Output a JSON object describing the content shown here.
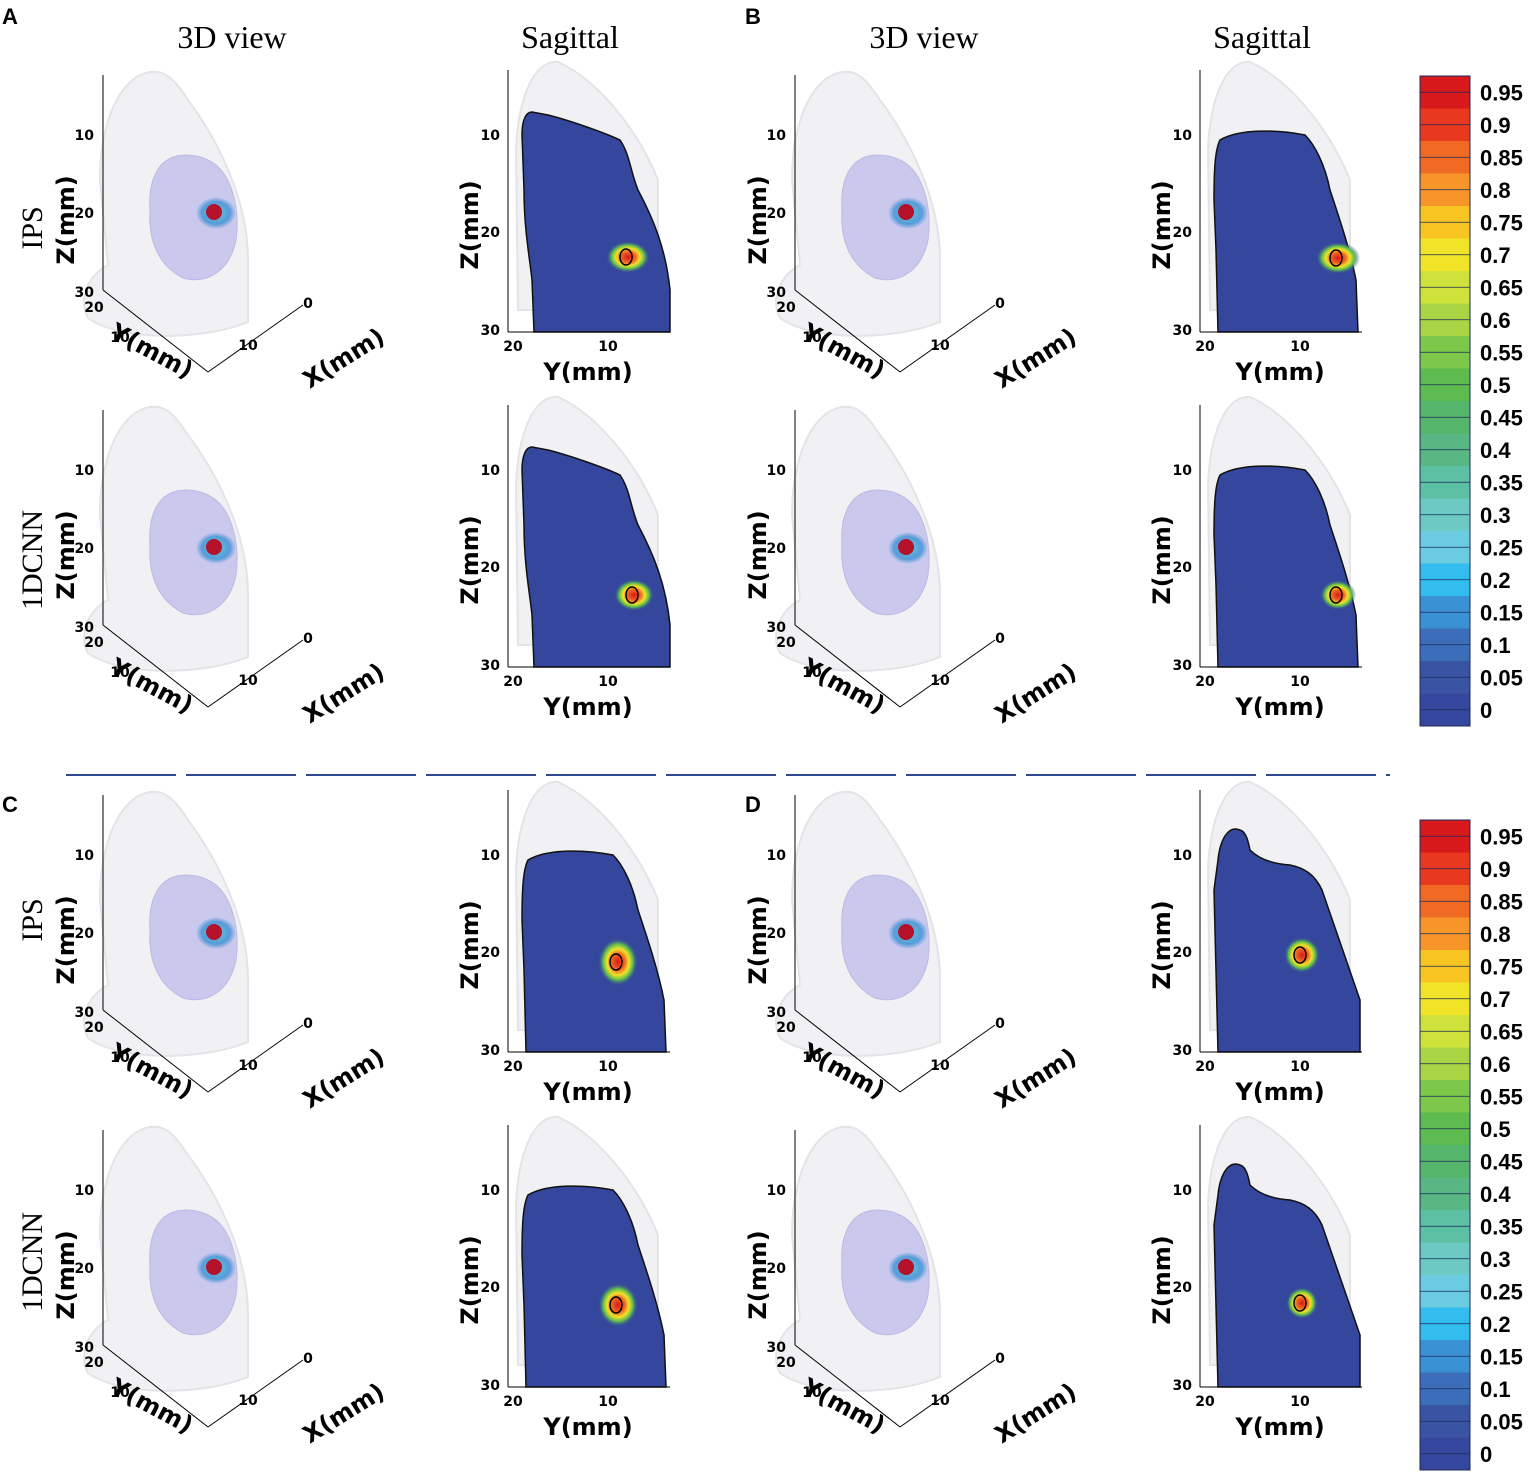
{
  "panels": [
    "A",
    "B",
    "C",
    "D"
  ],
  "column_titles": {
    "view3d": "3D view",
    "sagittal": "Sagittal"
  },
  "row_titles": {
    "ips": "IPS",
    "cnn": "1DCNN"
  },
  "axes": {
    "z_label": "Z(mm)",
    "y_label": "Y(mm)",
    "x_label": "X(mm)",
    "z_ticks_3d": [
      "10",
      "20",
      "30"
    ],
    "y_ticks_3d": [
      "20",
      "10"
    ],
    "x_ticks_3d": [
      "10",
      "0"
    ],
    "z_ticks_sag": [
      "10",
      "20",
      "30"
    ],
    "y_ticks_sag": [
      "20",
      "10"
    ]
  },
  "colorbar": {
    "ticks": [
      "0.95",
      "0.9",
      "0.85",
      "0.8",
      "0.75",
      "0.7",
      "0.65",
      "0.6",
      "0.55",
      "0.5",
      "0.45",
      "0.4",
      "0.35",
      "0.3",
      "0.25",
      "0.2",
      "0.15",
      "0.1",
      "0.05",
      "0"
    ],
    "colors": [
      "#d7191c",
      "#e8381e",
      "#f06a24",
      "#f7952a",
      "#f9c523",
      "#f1e327",
      "#cfe23c",
      "#a9d544",
      "#7dc84b",
      "#5dbb4f",
      "#55b56a",
      "#58b783",
      "#5cc0a2",
      "#6dcac3",
      "#6bcbe0",
      "#33bdee",
      "#3a91d3",
      "#3b6db9",
      "#3a54a4",
      "#34479c"
    ]
  },
  "chart_data": {
    "type": "heatmap",
    "description_kind": "reconstruction maps",
    "colorbar_range": [
      0,
      1
    ],
    "colorbar_levels": [
      0,
      0.05,
      0.1,
      0.15,
      0.2,
      0.25,
      0.3,
      0.35,
      0.4,
      0.45,
      0.5,
      0.55,
      0.6,
      0.65,
      0.7,
      0.75,
      0.8,
      0.85,
      0.9,
      0.95
    ],
    "z_range_mm": [
      30,
      10
    ],
    "y_range_mm": [
      20,
      10
    ],
    "panels": [
      {
        "panel": "A",
        "rows": [
          "IPS",
          "1DCNN"
        ]
      },
      {
        "panel": "B",
        "rows": [
          "IPS",
          "1DCNN"
        ]
      },
      {
        "panel": "C",
        "rows": [
          "IPS",
          "1DCNN"
        ]
      },
      {
        "panel": "D",
        "rows": [
          "IPS",
          "1DCNN"
        ]
      }
    ]
  }
}
